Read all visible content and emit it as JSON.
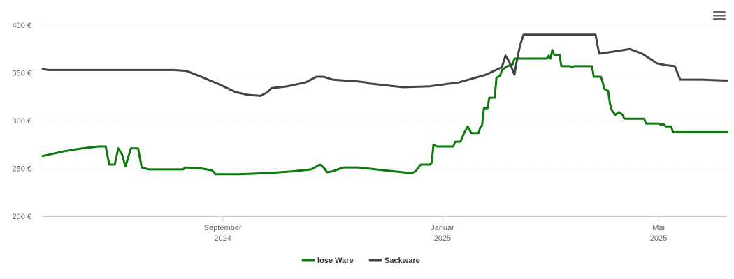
{
  "chart_data": {
    "type": "line",
    "title": "",
    "xlabel": "",
    "ylabel": "",
    "ylim": [
      200,
      400
    ],
    "yticks": [
      {
        "value": 200,
        "label": "200 €"
      },
      {
        "value": 250,
        "label": "250 €"
      },
      {
        "value": 300,
        "label": "300 €"
      },
      {
        "value": 350,
        "label": "350 €"
      },
      {
        "value": 400,
        "label": "400 €"
      }
    ],
    "xlim": [
      "2024-05-24",
      "2025-06-08"
    ],
    "xticks": [
      {
        "date": "2024-09-01",
        "line1": "September",
        "line2": "2024"
      },
      {
        "date": "2025-01-01",
        "line1": "Januar",
        "line2": "2025"
      },
      {
        "date": "2025-05-01",
        "line1": "Mai",
        "line2": "2025"
      }
    ],
    "grid": true,
    "legend_position": "bottom-center",
    "series": [
      {
        "name": "lose Ware",
        "color": "#0d7a0d",
        "points": [
          [
            "2024-05-24",
            263
          ],
          [
            "2024-06-05",
            268
          ],
          [
            "2024-06-15",
            271
          ],
          [
            "2024-06-24",
            273
          ],
          [
            "2024-06-28",
            273
          ],
          [
            "2024-06-30",
            254
          ],
          [
            "2024-07-03",
            254
          ],
          [
            "2024-07-05",
            271
          ],
          [
            "2024-07-07",
            265
          ],
          [
            "2024-07-09",
            252
          ],
          [
            "2024-07-12",
            271
          ],
          [
            "2024-07-16",
            271
          ],
          [
            "2024-07-18",
            251
          ],
          [
            "2024-07-22",
            249
          ],
          [
            "2024-08-05",
            249
          ],
          [
            "2024-08-10",
            249
          ],
          [
            "2024-08-11",
            251
          ],
          [
            "2024-08-20",
            250
          ],
          [
            "2024-08-26",
            248
          ],
          [
            "2024-08-28",
            244
          ],
          [
            "2024-09-10",
            244
          ],
          [
            "2024-09-25",
            245
          ],
          [
            "2024-10-10",
            247
          ],
          [
            "2024-10-20",
            249
          ],
          [
            "2024-10-25",
            254
          ],
          [
            "2024-10-27",
            251
          ],
          [
            "2024-10-29",
            246
          ],
          [
            "2024-11-01",
            247
          ],
          [
            "2024-11-07",
            251
          ],
          [
            "2024-11-15",
            251
          ],
          [
            "2024-12-10",
            246
          ],
          [
            "2024-12-15",
            245
          ],
          [
            "2024-12-17",
            247
          ],
          [
            "2024-12-20",
            254
          ],
          [
            "2024-12-25",
            254
          ],
          [
            "2024-12-26",
            256
          ],
          [
            "2024-12-27",
            275
          ],
          [
            "2024-12-29",
            273
          ],
          [
            "2025-01-04",
            273
          ],
          [
            "2025-01-07",
            273
          ],
          [
            "2025-01-08",
            278
          ],
          [
            "2025-01-11",
            278
          ],
          [
            "2025-01-13",
            287
          ],
          [
            "2025-01-15",
            294
          ],
          [
            "2025-01-17",
            287
          ],
          [
            "2025-01-21",
            287
          ],
          [
            "2025-01-22",
            293
          ],
          [
            "2025-01-23",
            295
          ],
          [
            "2025-01-24",
            313
          ],
          [
            "2025-01-26",
            313
          ],
          [
            "2025-01-27",
            324
          ],
          [
            "2025-01-30",
            324
          ],
          [
            "2025-01-31",
            345
          ],
          [
            "2025-02-02",
            347
          ],
          [
            "2025-02-03",
            353
          ],
          [
            "2025-02-06",
            357
          ],
          [
            "2025-02-09",
            359
          ],
          [
            "2025-02-10",
            365
          ],
          [
            "2025-02-28",
            365
          ],
          [
            "2025-03-01",
            368
          ],
          [
            "2025-03-02",
            365
          ],
          [
            "2025-03-03",
            374
          ],
          [
            "2025-03-04",
            369
          ],
          [
            "2025-03-07",
            369
          ],
          [
            "2025-03-08",
            357
          ],
          [
            "2025-03-13",
            357
          ],
          [
            "2025-03-14",
            356
          ],
          [
            "2025-03-15",
            357
          ],
          [
            "2025-03-25",
            357
          ],
          [
            "2025-03-26",
            346
          ],
          [
            "2025-03-30",
            346
          ],
          [
            "2025-03-31",
            340
          ],
          [
            "2025-04-01",
            333
          ],
          [
            "2025-04-03",
            331
          ],
          [
            "2025-04-04",
            318
          ],
          [
            "2025-04-05",
            311
          ],
          [
            "2025-04-07",
            306
          ],
          [
            "2025-04-09",
            309
          ],
          [
            "2025-04-11",
            306
          ],
          [
            "2025-04-12",
            302
          ],
          [
            "2025-04-23",
            302
          ],
          [
            "2025-04-24",
            297
          ],
          [
            "2025-05-01",
            297
          ],
          [
            "2025-05-02",
            296
          ],
          [
            "2025-05-04",
            296
          ],
          [
            "2025-05-05",
            294
          ],
          [
            "2025-05-08",
            294
          ],
          [
            "2025-05-09",
            288
          ],
          [
            "2025-06-08",
            288
          ]
        ]
      },
      {
        "name": "Sackware",
        "color": "#434348",
        "points": [
          [
            "2024-05-24",
            354
          ],
          [
            "2024-05-27",
            353
          ],
          [
            "2024-06-30",
            353
          ],
          [
            "2024-08-05",
            353
          ],
          [
            "2024-08-12",
            352
          ],
          [
            "2024-08-20",
            346
          ],
          [
            "2024-08-30",
            338
          ],
          [
            "2024-09-08",
            330
          ],
          [
            "2024-09-15",
            327
          ],
          [
            "2024-09-22",
            326
          ],
          [
            "2024-09-26",
            330
          ],
          [
            "2024-09-28",
            334
          ],
          [
            "2024-10-07",
            336
          ],
          [
            "2024-10-17",
            340
          ],
          [
            "2024-10-23",
            346
          ],
          [
            "2024-10-27",
            346
          ],
          [
            "2024-11-01",
            343
          ],
          [
            "2024-11-15",
            341
          ],
          [
            "2024-11-20",
            340
          ],
          [
            "2024-11-21",
            339
          ],
          [
            "2024-12-10",
            335
          ],
          [
            "2024-12-25",
            336
          ],
          [
            "2025-01-10",
            340
          ],
          [
            "2025-01-25",
            348
          ],
          [
            "2025-02-03",
            356
          ],
          [
            "2025-02-05",
            368
          ],
          [
            "2025-02-07",
            362
          ],
          [
            "2025-02-10",
            348
          ],
          [
            "2025-02-11",
            360
          ],
          [
            "2025-02-13",
            378
          ],
          [
            "2025-02-15",
            390
          ],
          [
            "2025-03-10",
            390
          ],
          [
            "2025-03-27",
            390
          ],
          [
            "2025-03-29",
            370
          ],
          [
            "2025-04-05",
            372
          ],
          [
            "2025-04-15",
            375
          ],
          [
            "2025-04-22",
            370
          ],
          [
            "2025-04-30",
            360
          ],
          [
            "2025-05-05",
            358
          ],
          [
            "2025-05-10",
            357
          ],
          [
            "2025-05-13",
            343
          ],
          [
            "2025-05-25",
            343
          ],
          [
            "2025-06-08",
            342
          ]
        ]
      }
    ]
  },
  "menu": {
    "icon": "hamburger-menu-icon"
  }
}
